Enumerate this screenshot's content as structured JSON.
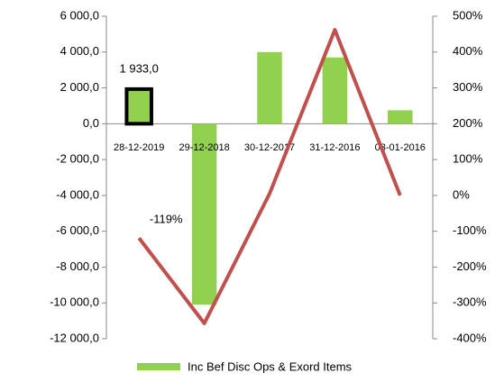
{
  "chart_data": {
    "type": "bar_line",
    "categories": [
      "28-12-2019",
      "29-12-2018",
      "30-12-2017",
      "31-12-2016",
      "03-01-2016"
    ],
    "series": [
      {
        "name": "Inc Bef Disc Ops & Exord Items",
        "type": "bar",
        "color": "#92d050",
        "values": [
          1933,
          -10100,
          4000,
          3700,
          750
        ],
        "value_labels": [
          "1 933,0",
          null,
          null,
          null,
          null
        ]
      },
      {
        "type": "line",
        "axis": "y2",
        "color": "#c0504d",
        "values": [
          -119,
          -357,
          5,
          462,
          0
        ],
        "value_labels": [
          "-119%",
          null,
          null,
          null,
          null
        ]
      }
    ],
    "ylim": [
      -12000,
      6000
    ],
    "yticks": [
      {
        "value": -12000,
        "label": "-12 000,0"
      },
      {
        "value": -10000,
        "label": "-10 000,0"
      },
      {
        "value": -8000,
        "label": "-8 000,0"
      },
      {
        "value": -6000,
        "label": "-6 000,0"
      },
      {
        "value": -4000,
        "label": "-4 000,0"
      },
      {
        "value": -2000,
        "label": "-2 000,0"
      },
      {
        "value": 0,
        "label": "0,0"
      },
      {
        "value": 2000,
        "label": "2 000,0"
      },
      {
        "value": 4000,
        "label": "4 000,0"
      },
      {
        "value": 6000,
        "label": "6 000,0"
      }
    ],
    "y2lim": [
      -400,
      500
    ],
    "y2ticks": [
      {
        "value": -400,
        "label": "-400%"
      },
      {
        "value": -300,
        "label": "-300%"
      },
      {
        "value": -200,
        "label": "-200%"
      },
      {
        "value": -100,
        "label": "-100%"
      },
      {
        "value": 0,
        "label": "0%"
      },
      {
        "value": 100,
        "label": "100%"
      },
      {
        "value": 200,
        "label": "200%"
      },
      {
        "value": 300,
        "label": "300%"
      },
      {
        "value": 400,
        "label": "400%"
      },
      {
        "value": 500,
        "label": "500%"
      }
    ],
    "grid": false,
    "legend": "bottom"
  }
}
